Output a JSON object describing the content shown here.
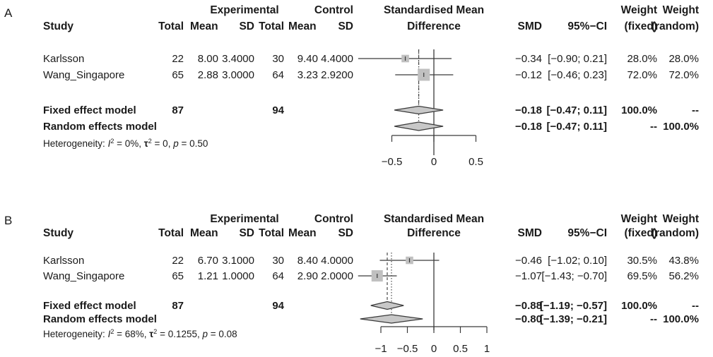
{
  "chart_data": [
    {
      "type": "forest",
      "panel_label": "A",
      "headers": {
        "group_experimental": "Experimental",
        "group_control": "Control",
        "study": "Study",
        "e_total": "Total",
        "e_mean": "Mean",
        "e_sd": "SD",
        "c_total": "Total",
        "c_mean": "Mean",
        "c_sd": "SD",
        "plot_title_1": "Standardised Mean",
        "plot_title_2": "Difference",
        "smd": "SMD",
        "ci": "95%−CI",
        "wf_1": "Weight",
        "wf_2": "(fixed)",
        "wr_1": "Weight",
        "wr_2": "(random)"
      },
      "studies": [
        {
          "name": "Karlsson",
          "e_total": "22",
          "e_mean": "8.00",
          "e_sd": "3.4000",
          "c_total": "30",
          "c_mean": "9.40",
          "c_sd": "4.4000",
          "smd": -0.34,
          "lower": -0.9,
          "upper": 0.21,
          "smd_text": "−0.34",
          "ci_text": "[−0.90; 0.21]",
          "w_fixed": "28.0%",
          "w_random": "28.0%",
          "weight": 0.28
        },
        {
          "name": "Wang_Singapore",
          "e_total": "65",
          "e_mean": "2.88",
          "e_sd": "3.0000",
          "c_total": "64",
          "c_mean": "3.23",
          "c_sd": "2.9200",
          "smd": -0.12,
          "lower": -0.46,
          "upper": 0.23,
          "smd_text": "−0.12",
          "ci_text": "[−0.46; 0.23]",
          "w_fixed": "72.0%",
          "w_random": "72.0%",
          "weight": 0.72
        }
      ],
      "fixed": {
        "label": "Fixed effect model",
        "e_total": "87",
        "c_total": "94",
        "smd": -0.18,
        "lower": -0.47,
        "upper": 0.11,
        "smd_text": "−0.18",
        "ci_text": "[−0.47; 0.11]",
        "w_fixed": "100.0%",
        "w_random": "--"
      },
      "random": {
        "label": "Random effects model",
        "smd": -0.18,
        "lower": -0.47,
        "upper": 0.11,
        "smd_text": "−0.18",
        "ci_text": "[−0.47; 0.11]",
        "w_fixed": "--",
        "w_random": "100.0%"
      },
      "heterogeneity": {
        "prefix": "Heterogeneity: ",
        "i2": "I",
        "i2_val": " = 0%, ",
        "tau": "τ",
        "tau_val": " = 0, ",
        "p": "p",
        "p_val": " = 0.50"
      },
      "xlim": [
        -0.5,
        0.5
      ],
      "xticks": [
        -0.5,
        0,
        0.5
      ],
      "xtick_labels": [
        "−0.5",
        "0",
        "0.5"
      ],
      "null_value": 0
    },
    {
      "type": "forest",
      "panel_label": "B",
      "headers": {
        "group_experimental": "Experimental",
        "group_control": "Control",
        "study": "Study",
        "e_total": "Total",
        "e_mean": "Mean",
        "e_sd": "SD",
        "c_total": "Total",
        "c_mean": "Mean",
        "c_sd": "SD",
        "plot_title_1": "Standardised Mean",
        "plot_title_2": "Difference",
        "smd": "SMD",
        "ci": "95%−CI",
        "wf_1": "Weight",
        "wf_2": "(fixed)",
        "wr_1": "Weight",
        "wr_2": "(random)"
      },
      "studies": [
        {
          "name": "Karlsson",
          "e_total": "22",
          "e_mean": "6.70",
          "e_sd": "3.1000",
          "c_total": "30",
          "c_mean": "8.40",
          "c_sd": "4.0000",
          "smd": -0.46,
          "lower": -1.02,
          "upper": 0.1,
          "smd_text": "−0.46",
          "ci_text": "[−1.02;  0.10]",
          "w_fixed": "30.5%",
          "w_random": "43.8%",
          "weight": 0.305
        },
        {
          "name": "Wang_Singapore",
          "e_total": "65",
          "e_mean": "1.21",
          "e_sd": "1.0000",
          "c_total": "64",
          "c_mean": "2.90",
          "c_sd": "2.0000",
          "smd": -1.07,
          "lower": -1.43,
          "upper": -0.7,
          "smd_text": "−1.07",
          "ci_text": "[−1.43; −0.70]",
          "w_fixed": "69.5%",
          "w_random": "56.2%",
          "weight": 0.695
        }
      ],
      "fixed": {
        "label": "Fixed effect model",
        "e_total": "87",
        "c_total": "94",
        "smd": -0.88,
        "lower": -1.19,
        "upper": -0.57,
        "smd_text": "−0.88",
        "ci_text": "[−1.19; −0.57]",
        "w_fixed": "100.0%",
        "w_random": "--"
      },
      "random": {
        "label": "Random effects model",
        "smd": -0.8,
        "lower": -1.39,
        "upper": -0.21,
        "smd_text": "−0.80",
        "ci_text": "[−1.39; −0.21]",
        "w_fixed": "--",
        "w_random": "100.0%"
      },
      "heterogeneity": {
        "prefix": "Heterogeneity: ",
        "i2": "I",
        "i2_val": " = 68%, ",
        "tau": "τ",
        "tau_val": " = 0.1255, ",
        "p": "p",
        "p_val": " = 0.08"
      },
      "xlim": [
        -1,
        1
      ],
      "xticks": [
        -1,
        -0.5,
        0,
        0.5,
        1
      ],
      "xtick_labels": [
        "−1",
        "−0.5",
        "0",
        "0.5",
        "1"
      ],
      "null_value": 0
    }
  ],
  "colors": {
    "box_fill": "#c0c0c0",
    "diamond_fill": "#c8c8c8",
    "line": "#3a3a3a",
    "text": "#1a1a1a"
  }
}
